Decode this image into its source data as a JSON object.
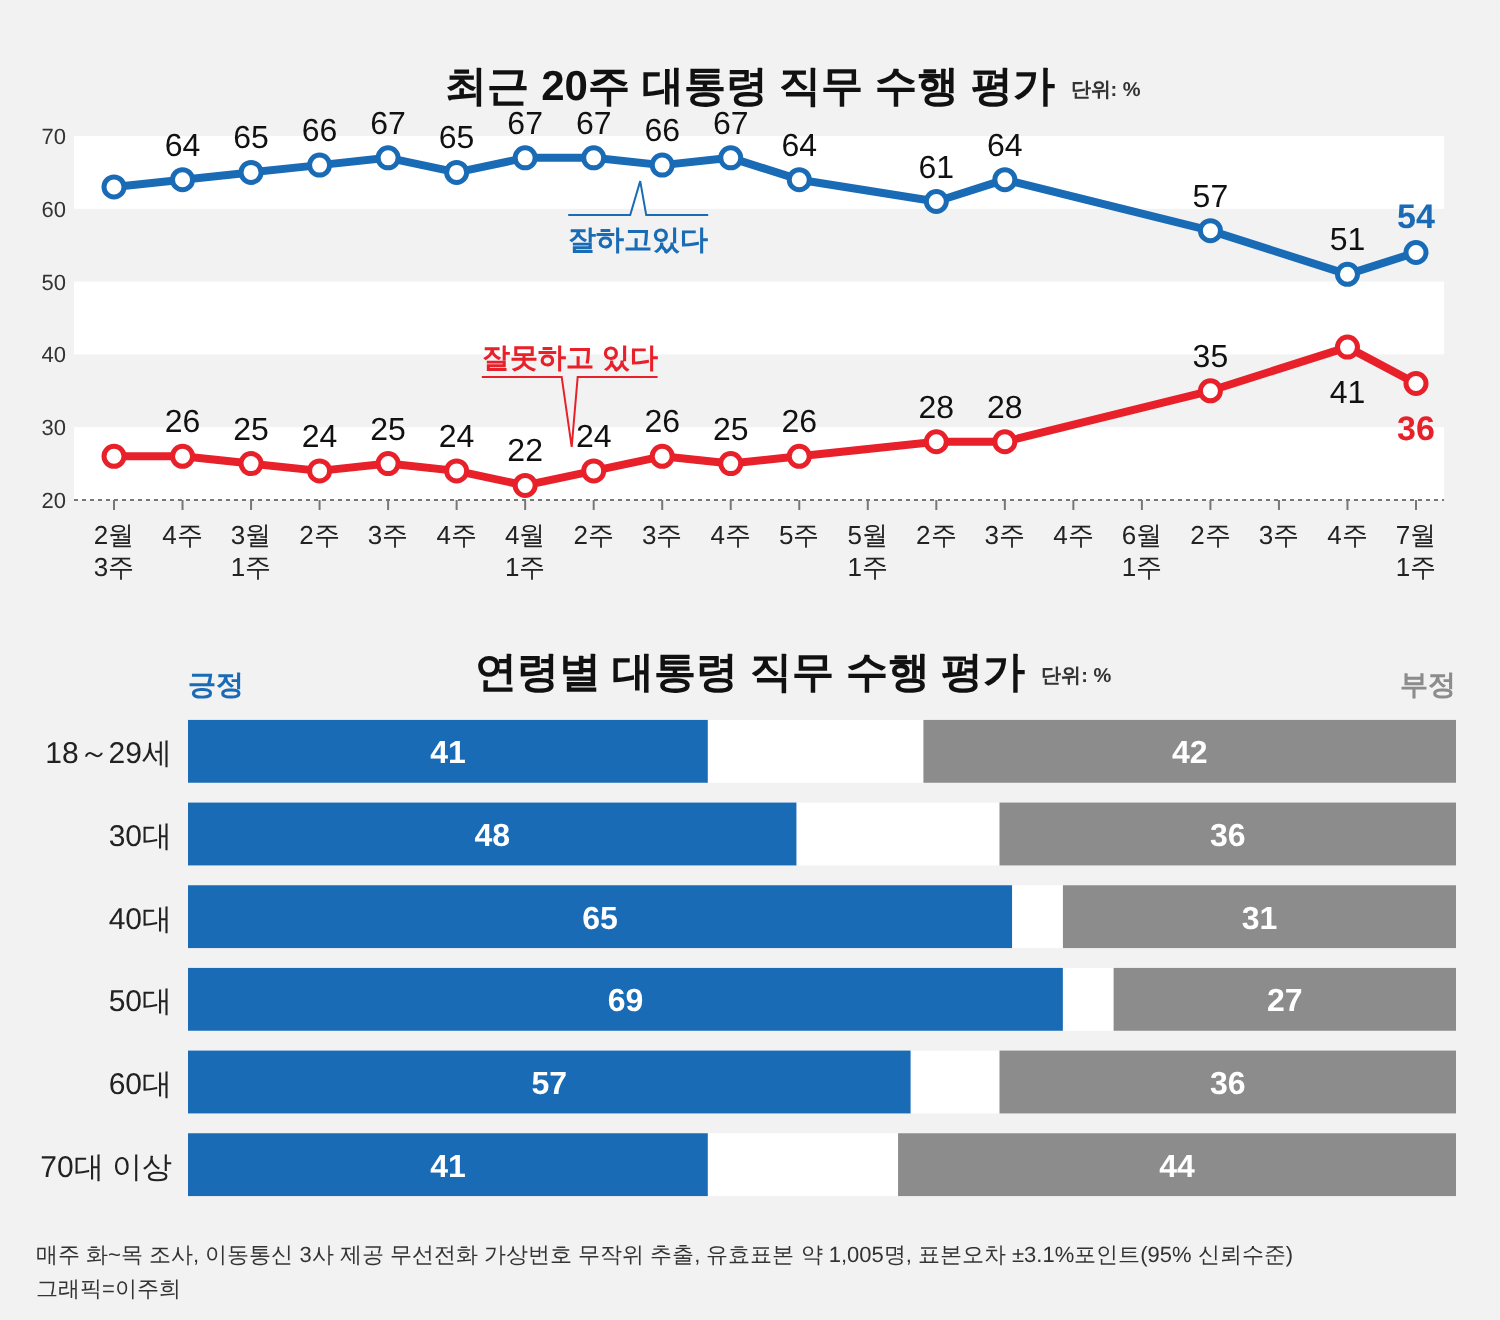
{
  "chart_data": [
    {
      "type": "line",
      "title": "최근 20주 대통령 직무 수행 평가",
      "subtitle": "단위: %",
      "categories": [
        "2월\n3주",
        "4주",
        "3월\n1주",
        "2주",
        "3주",
        "4주",
        "4월\n1주",
        "2주",
        "3주",
        "4주",
        "5주",
        "5월\n1주",
        "2주",
        "3주",
        "4주",
        "6월\n1주",
        "2주",
        "3주",
        "4주",
        "7월\n1주"
      ],
      "series": [
        {
          "name": "잘하고있다",
          "color": "#1a6bb5",
          "values": [
            63,
            64,
            65,
            66,
            67,
            65,
            67,
            67,
            66,
            67,
            64,
            null,
            61,
            64,
            null,
            null,
            57,
            null,
            51,
            54
          ],
          "value_labels": [
            null,
            "64",
            "65",
            "66",
            "67",
            "65",
            "67",
            "67",
            "66",
            "67",
            "64",
            null,
            "61",
            "64",
            null,
            null,
            "57",
            null,
            "51",
            "54"
          ]
        },
        {
          "name": "잘못하고 있다",
          "color": "#e8202a",
          "values": [
            26,
            26,
            25,
            24,
            25,
            24,
            22,
            24,
            26,
            25,
            26,
            null,
            28,
            28,
            null,
            null,
            35,
            null,
            41,
            36
          ],
          "value_labels": [
            null,
            "26",
            "25",
            "24",
            "25",
            "24",
            "22",
            "24",
            "26",
            "25",
            "26",
            null,
            "28",
            "28",
            null,
            null,
            "35",
            null,
            "41",
            "36"
          ]
        }
      ],
      "ylim": [
        20,
        70
      ],
      "yticks": [
        20,
        30,
        40,
        50,
        60,
        70
      ],
      "marker": "circle",
      "line_style": "solid",
      "bands": [
        {
          "axis": "y",
          "from": 60,
          "to": 70,
          "color": "#ffffff"
        },
        {
          "axis": "y",
          "from": 40,
          "to": 50,
          "color": "#ffffff"
        },
        {
          "axis": "y",
          "from": 20,
          "to": 30,
          "color": "#ffffff"
        }
      ]
    },
    {
      "type": "bar",
      "orientation": "horizontal",
      "stacked": true,
      "title": "연령별 대통령 직무 수행 평가",
      "subtitle": "단위: %",
      "categories": [
        "18～29세",
        "30대",
        "40대",
        "50대",
        "60대",
        "70대 이상"
      ],
      "series": [
        {
          "name": "긍정",
          "color": "#1a6bb5",
          "values": [
            41,
            48,
            65,
            69,
            57,
            41
          ],
          "value_labels": [
            "41",
            "48",
            "65",
            "69",
            "57",
            "41"
          ]
        },
        {
          "color": "#ffffff",
          "values": [
            17,
            16,
            4,
            4,
            7,
            15
          ],
          "value_labels": [
            null,
            null,
            null,
            null,
            null,
            null
          ]
        },
        {
          "name": "부정",
          "color": "#8c8c8c",
          "values": [
            42,
            36,
            31,
            27,
            36,
            44
          ],
          "value_labels": [
            "42",
            "36",
            "31",
            "27",
            "36",
            "44"
          ]
        }
      ],
      "xlim": [
        0,
        100
      ],
      "annotations": [
        "매주 화~목 조사, 이동통신 3사 제공 무선전화 가상번호 무작위 추출, 유효표본 약 1,005명, 표본오차 ±3.1%포인트(95% 신뢰수준)",
        "그래픽=이주희"
      ]
    }
  ]
}
